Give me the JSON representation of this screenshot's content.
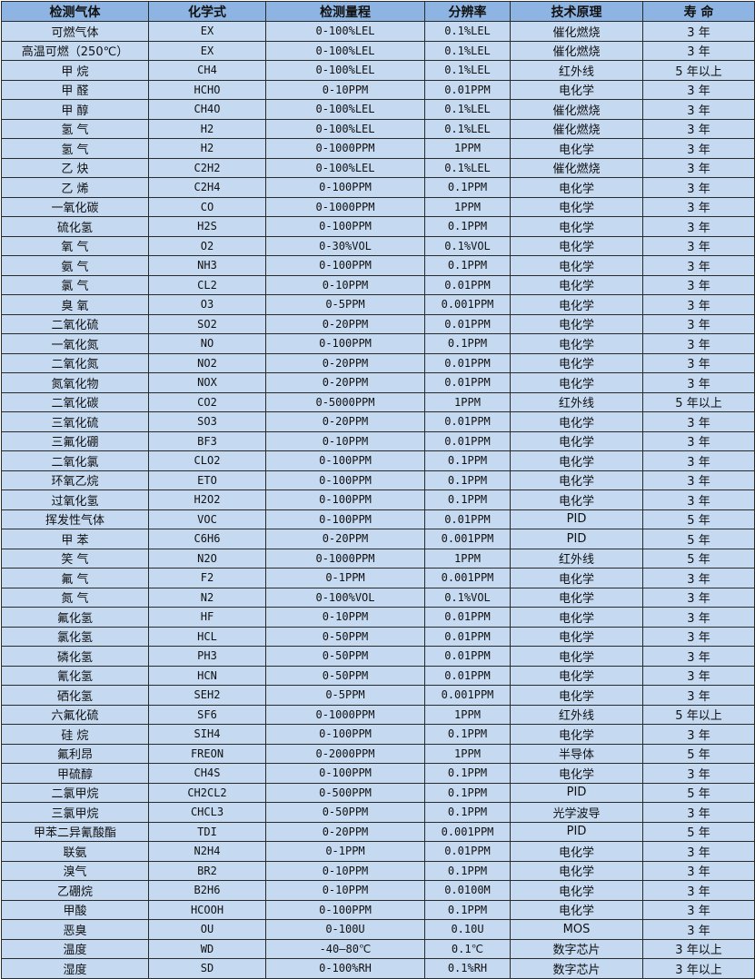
{
  "colors": {
    "header_bg": "#8DB4E2",
    "row_bg": "#C5D9F1",
    "border": "#2a2a2a"
  },
  "table": {
    "headers": [
      "检测气体",
      "化学式",
      "检测量程",
      "分辨率",
      "技术原理",
      "寿 命"
    ],
    "rows": [
      [
        "可燃气体",
        "EX",
        "0-100%LEL",
        "0.1%LEL",
        "催化燃烧",
        "3 年"
      ],
      [
        "高温可燃（250℃）",
        "EX",
        "0-100%LEL",
        "0.1%LEL",
        "催化燃烧",
        "3 年"
      ],
      [
        "甲 烷",
        "CH4",
        "0-100%LEL",
        "0.1%LEL",
        "红外线",
        "5 年以上"
      ],
      [
        "甲 醛",
        "HCHO",
        "0-10PPM",
        "0.01PPM",
        "电化学",
        "3 年"
      ],
      [
        "甲 醇",
        "CH4O",
        "0-100%LEL",
        "0.1%LEL",
        "催化燃烧",
        "3 年"
      ],
      [
        "氢 气",
        "H2",
        "0-100%LEL",
        "0.1%LEL",
        "催化燃烧",
        "3 年"
      ],
      [
        "氢 气",
        "H2",
        "0-1000PPM",
        "1PPM",
        "电化学",
        "3 年"
      ],
      [
        "乙 炔",
        "C2H2",
        "0-100%LEL",
        "0.1%LEL",
        "催化燃烧",
        "3 年"
      ],
      [
        "乙 烯",
        "C2H4",
        "0-100PPM",
        "0.1PPM",
        "电化学",
        "3 年"
      ],
      [
        "一氧化碳",
        "CO",
        "0-1000PPM",
        "1PPM",
        "电化学",
        "3 年"
      ],
      [
        "硫化氢",
        "H2S",
        "0-100PPM",
        "0.1PPM",
        "电化学",
        "3 年"
      ],
      [
        "氧 气",
        "O2",
        "0-30%VOL",
        "0.1%VOL",
        "电化学",
        "3 年"
      ],
      [
        "氨 气",
        "NH3",
        "0-100PPM",
        "0.1PPM",
        "电化学",
        "3 年"
      ],
      [
        "氯 气",
        "CL2",
        "0-10PPM",
        "0.01PPM",
        "电化学",
        "3 年"
      ],
      [
        "臭 氧",
        "O3",
        "0-5PPM",
        "0.001PPM",
        "电化学",
        "3 年"
      ],
      [
        "二氧化硫",
        "SO2",
        "0-20PPM",
        "0.01PPM",
        "电化学",
        "3 年"
      ],
      [
        "一氧化氮",
        "NO",
        "0-100PPM",
        "0.1PPM",
        "电化学",
        "3 年"
      ],
      [
        "二氧化氮",
        "NO2",
        "0-20PPM",
        "0.01PPM",
        "电化学",
        "3 年"
      ],
      [
        "氮氧化物",
        "NOX",
        "0-20PPM",
        "0.01PPM",
        "电化学",
        "3 年"
      ],
      [
        "二氧化碳",
        "CO2",
        "0-5000PPM",
        "1PPM",
        "红外线",
        "5 年以上"
      ],
      [
        "三氧化硫",
        "SO3",
        "0-20PPM",
        "0.01PPM",
        "电化学",
        "3 年"
      ],
      [
        "三氟化硼",
        "BF3",
        "0-10PPM",
        "0.01PPM",
        "电化学",
        "3 年"
      ],
      [
        "二氧化氯",
        "CLO2",
        "0-100PPM",
        "0.1PPM",
        "电化学",
        "3 年"
      ],
      [
        "环氧乙烷",
        "ETO",
        "0-100PPM",
        "0.1PPM",
        "电化学",
        "3 年"
      ],
      [
        "过氧化氢",
        "H2O2",
        "0-100PPM",
        "0.1PPM",
        "电化学",
        "3 年"
      ],
      [
        "挥发性气体",
        "VOC",
        "0-100PPM",
        "0.01PPM",
        "PID",
        "5 年"
      ],
      [
        "甲 苯",
        "C6H6",
        "0-20PPM",
        "0.001PPM",
        "PID",
        "5 年"
      ],
      [
        "笑 气",
        "N2O",
        "0-1000PPM",
        "1PPM",
        "红外线",
        "5 年"
      ],
      [
        "氟 气",
        "F2",
        "0-1PPM",
        "0.001PPM",
        "电化学",
        "3 年"
      ],
      [
        "氮 气",
        "N2",
        "0-100%VOL",
        "0.1%VOL",
        "电化学",
        "3 年"
      ],
      [
        "氟化氢",
        "HF",
        "0-10PPM",
        "0.01PPM",
        "电化学",
        "3 年"
      ],
      [
        "氯化氢",
        "HCL",
        "0-50PPM",
        "0.01PPM",
        "电化学",
        "3 年"
      ],
      [
        "磷化氢",
        "PH3",
        "0-50PPM",
        "0.01PPM",
        "电化学",
        "3 年"
      ],
      [
        "氰化氢",
        "HCN",
        "0-50PPM",
        "0.01PPM",
        "电化学",
        "3 年"
      ],
      [
        "硒化氢",
        "SEH2",
        "0-5PPM",
        "0.001PPM",
        "电化学",
        "3 年"
      ],
      [
        "六氟化硫",
        "SF6",
        "0-1000PPM",
        "1PPM",
        "红外线",
        "5 年以上"
      ],
      [
        "硅 烷",
        "SIH4",
        "0-100PPM",
        "0.1PPM",
        "电化学",
        "3 年"
      ],
      [
        "氟利昂",
        "FREON",
        "0-2000PPM",
        "1PPM",
        "半导体",
        "5 年"
      ],
      [
        "甲硫醇",
        "CH4S",
        "0-100PPM",
        "0.1PPM",
        "电化学",
        "3 年"
      ],
      [
        "二氯甲烷",
        "CH2CL2",
        "0-500PPM",
        "0.1PPM",
        "PID",
        "5 年"
      ],
      [
        "三氯甲烷",
        "CHCL3",
        "0-50PPM",
        "0.1PPM",
        "光学波导",
        "3 年"
      ],
      [
        "甲苯二异氰酸酯",
        "TDI",
        "0-20PPM",
        "0.001PPM",
        "PID",
        "5 年"
      ],
      [
        "联氨",
        "N2H4",
        "0-1PPM",
        "0.01PPM",
        "电化学",
        "3 年"
      ],
      [
        "溴气",
        "BR2",
        "0-10PPM",
        "0.1PPM",
        "电化学",
        "3 年"
      ],
      [
        "乙硼烷",
        "B2H6",
        "0-10PPM",
        "0.0100M",
        "电化学",
        "3 年"
      ],
      [
        "甲酸",
        "HCOOH",
        "0-100PPM",
        "0.1PPM",
        "电化学",
        "3 年"
      ],
      [
        "恶臭",
        "OU",
        "0-100U",
        "0.10U",
        "MOS",
        "3 年"
      ],
      [
        "温度",
        "WD",
        "-40—80℃",
        "0.1℃",
        "数字芯片",
        "3 年以上"
      ],
      [
        "湿度",
        "SD",
        "0-100%RH",
        "0.1%RH",
        "数字芯片",
        "3 年以上"
      ]
    ]
  }
}
